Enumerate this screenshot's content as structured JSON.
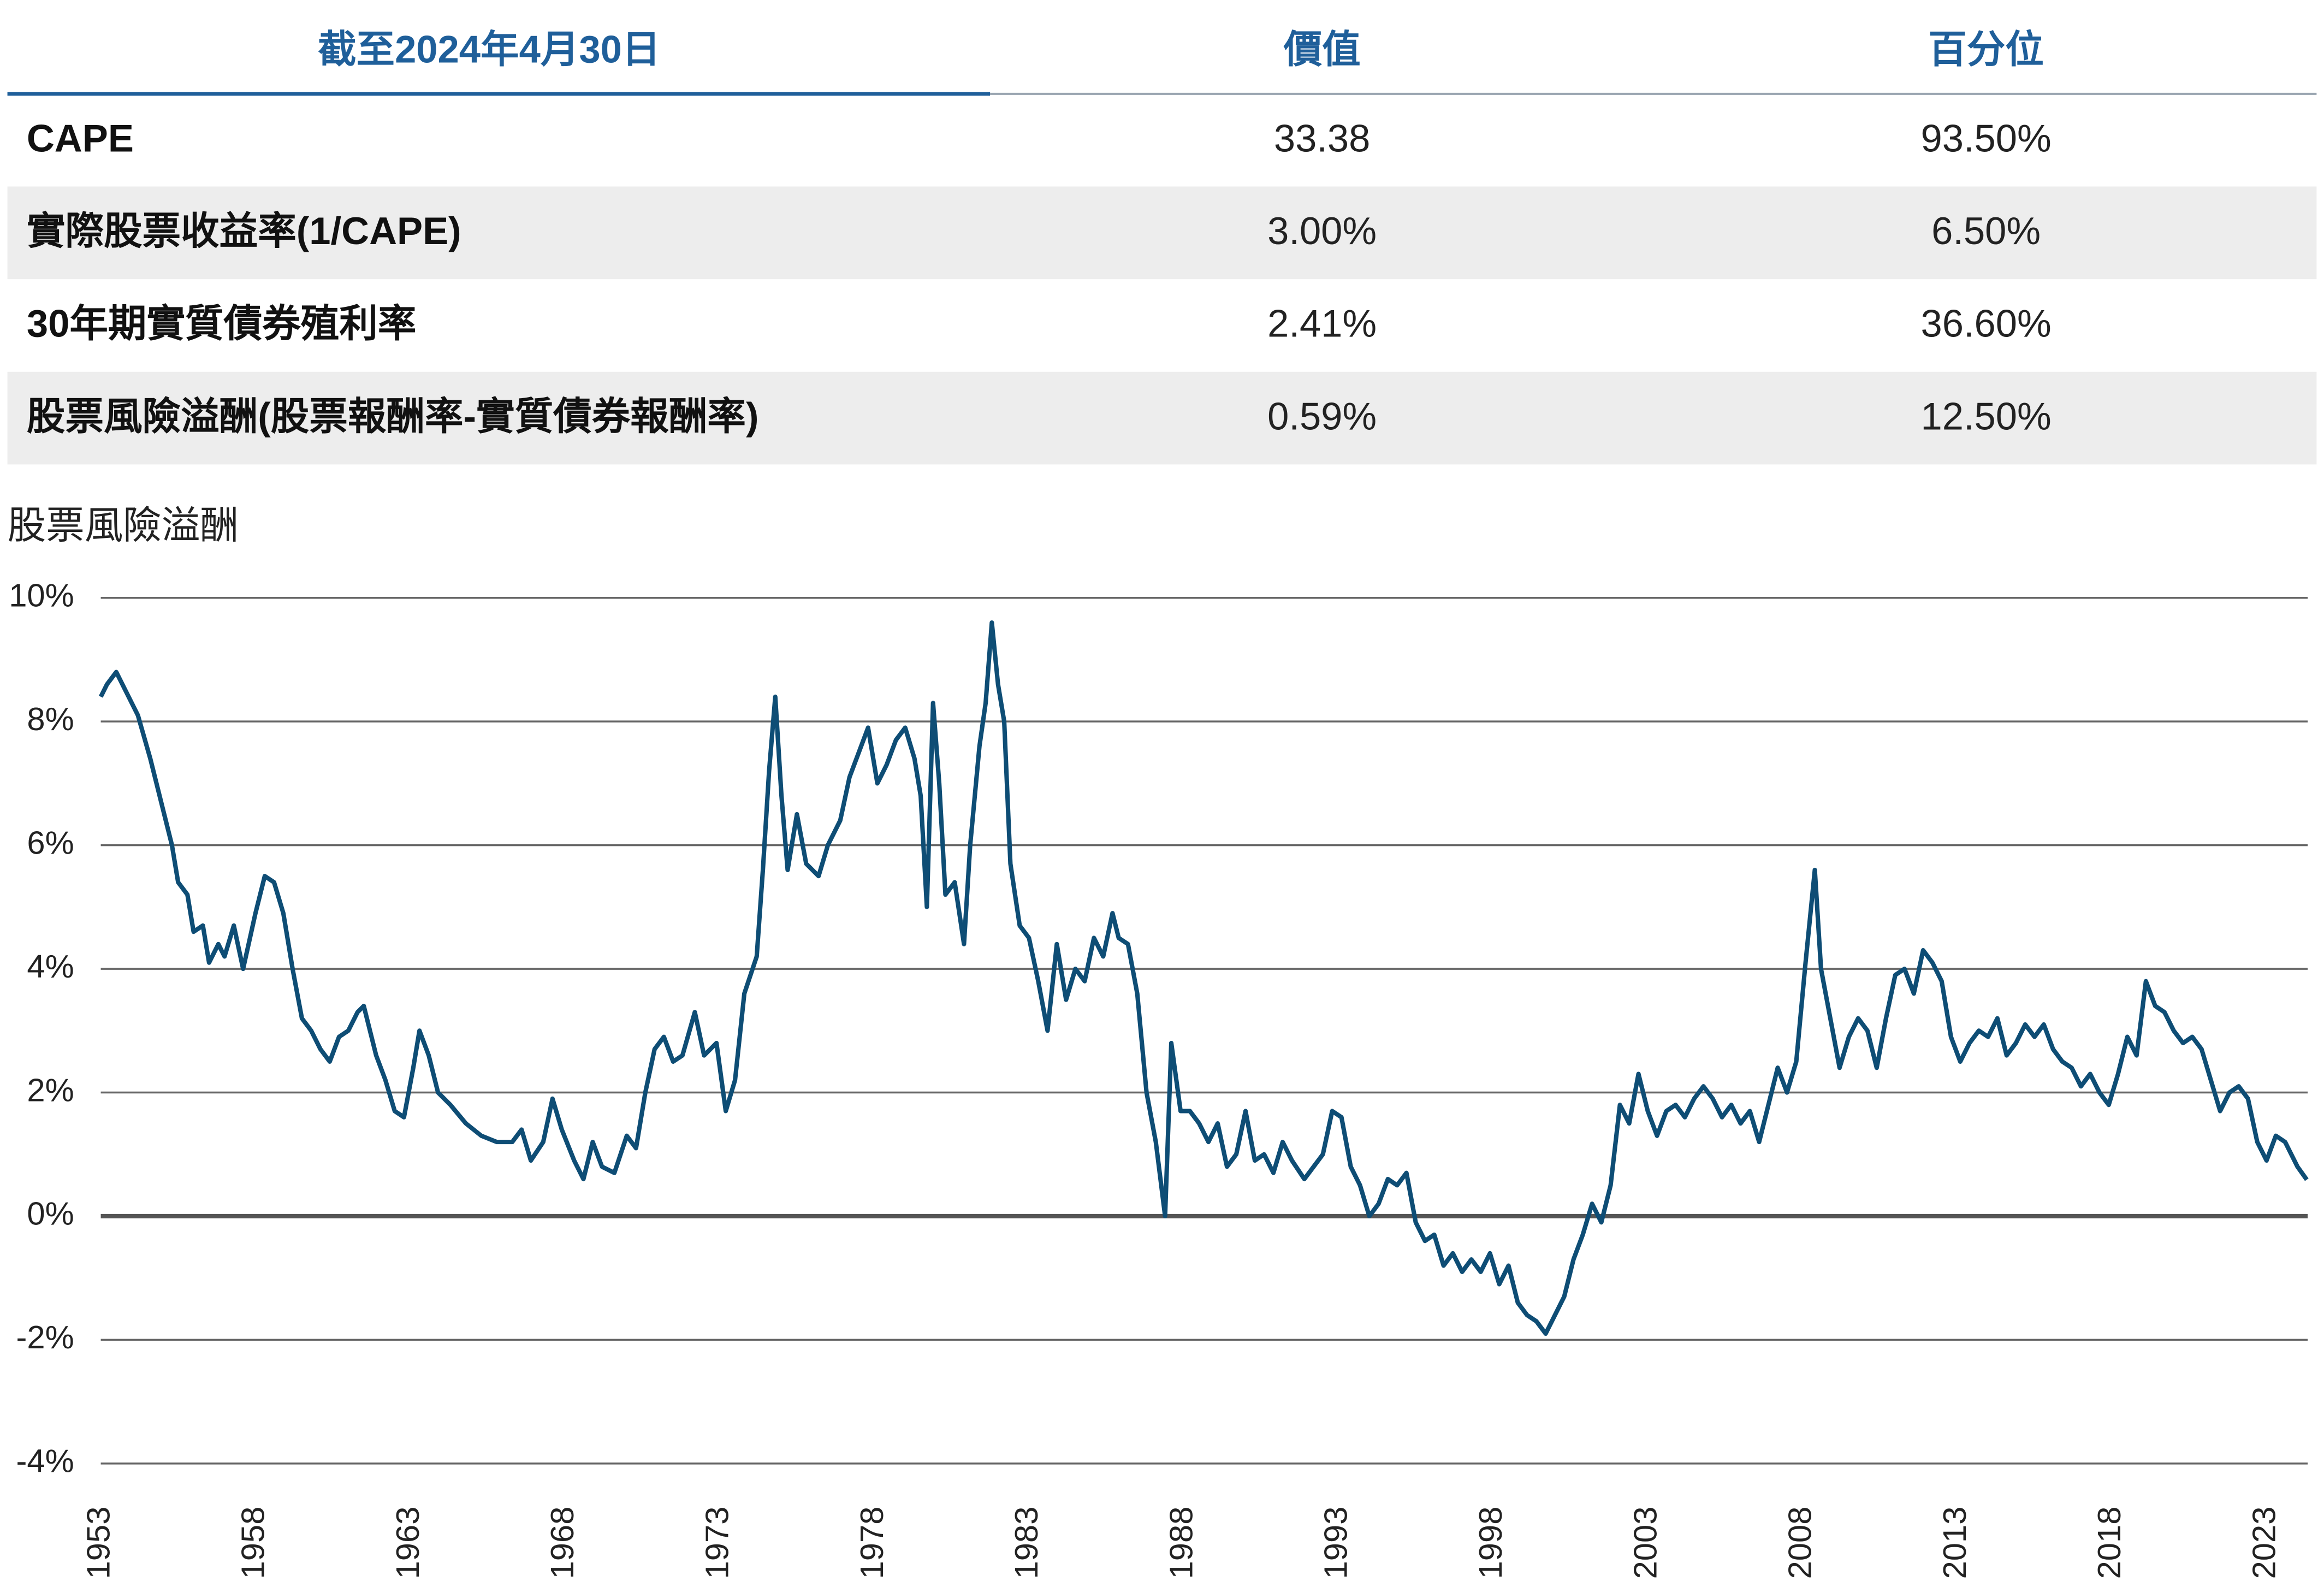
{
  "table": {
    "header": [
      "截至2024年4月30日",
      "價值",
      "百分位"
    ],
    "rows": [
      [
        "CAPE",
        "33.38",
        "93.50%"
      ],
      [
        "實際股票收益率(1/CAPE)",
        "3.00%",
        "6.50%"
      ],
      [
        "30年期實質債券殖利率",
        "2.41%",
        "36.60%"
      ],
      [
        "股票風險溢酬(股票報酬率-實質債券報酬率)",
        "0.59%",
        "12.50%"
      ]
    ],
    "percentile_colors": [
      "#c8102e",
      "#c8102e",
      "#ec7d92",
      "#e1506c"
    ]
  },
  "chart_data": {
    "type": "line",
    "title": "股票風險溢酬",
    "color": "#0e4d75",
    "xlim": [
      1953,
      2024.33
    ],
    "xticks": [
      1953,
      1958,
      1963,
      1968,
      1973,
      1978,
      1983,
      1988,
      1993,
      1998,
      2003,
      2008,
      2013,
      2018,
      2023
    ],
    "ylim": [
      -4,
      10
    ],
    "yticks": [
      {
        "value": -4,
        "label": "-4%"
      },
      {
        "value": -2,
        "label": "-2%"
      },
      {
        "value": 0,
        "label": "0%"
      },
      {
        "value": 2,
        "label": "2%"
      },
      {
        "value": 4,
        "label": "4%"
      },
      {
        "value": 6,
        "label": "6%"
      },
      {
        "value": 8,
        "label": "8%"
      },
      {
        "value": 10,
        "label": "10%"
      }
    ],
    "grid": true,
    "x": [
      1953.0,
      1953.2,
      1953.5,
      1953.8,
      1954.2,
      1954.6,
      1955.0,
      1955.3,
      1955.5,
      1955.8,
      1956.0,
      1956.3,
      1956.5,
      1956.8,
      1957.0,
      1957.3,
      1957.6,
      1958.0,
      1958.3,
      1958.6,
      1958.9,
      1959.2,
      1959.5,
      1959.8,
      1960.1,
      1960.4,
      1960.7,
      1961.0,
      1961.3,
      1961.5,
      1961.9,
      1962.2,
      1962.5,
      1962.8,
      1963.1,
      1963.3,
      1963.6,
      1963.9,
      1964.3,
      1964.8,
      1965.3,
      1965.8,
      1966.3,
      1966.6,
      1966.9,
      1967.3,
      1967.6,
      1967.9,
      1968.3,
      1968.6,
      1968.9,
      1969.2,
      1969.6,
      1970.0,
      1970.3,
      1970.6,
      1970.9,
      1971.2,
      1971.5,
      1971.8,
      1972.2,
      1972.5,
      1972.9,
      1973.2,
      1973.5,
      1973.8,
      1974.2,
      1974.4,
      1974.6,
      1974.8,
      1975.0,
      1975.2,
      1975.5,
      1975.8,
      1976.2,
      1976.5,
      1976.9,
      1977.2,
      1977.5,
      1977.8,
      1978.1,
      1978.4,
      1978.7,
      1979.0,
      1979.3,
      1979.5,
      1979.7,
      1979.9,
      1980.1,
      1980.3,
      1980.6,
      1980.9,
      1981.1,
      1981.4,
      1981.6,
      1981.8,
      1982.0,
      1982.2,
      1982.4,
      1982.7,
      1983.0,
      1983.3,
      1983.6,
      1983.9,
      1984.2,
      1984.5,
      1984.8,
      1985.1,
      1985.4,
      1985.7,
      1985.9,
      1986.2,
      1986.5,
      1986.8,
      1987.1,
      1987.4,
      1987.6,
      1987.9,
      1988.2,
      1988.5,
      1988.8,
      1989.1,
      1989.4,
      1989.7,
      1990.0,
      1990.3,
      1990.6,
      1990.9,
      1991.2,
      1991.5,
      1991.9,
      1992.2,
      1992.5,
      1992.8,
      1993.1,
      1993.4,
      1993.7,
      1994.0,
      1994.3,
      1994.6,
      1994.9,
      1995.2,
      1995.5,
      1995.8,
      1996.1,
      1996.4,
      1996.7,
      1997.0,
      1997.3,
      1997.6,
      1997.9,
      1998.2,
      1998.5,
      1998.8,
      1999.1,
      1999.4,
      1999.7,
      2000.0,
      2000.3,
      2000.6,
      2000.9,
      2001.2,
      2001.5,
      2001.8,
      2002.1,
      2002.4,
      2002.7,
      2003.0,
      2003.3,
      2003.6,
      2003.9,
      2004.2,
      2004.5,
      2004.8,
      2005.1,
      2005.4,
      2005.7,
      2006.0,
      2006.3,
      2006.6,
      2006.9,
      2007.2,
      2007.5,
      2007.8,
      2008.1,
      2008.4,
      2008.6,
      2008.9,
      2009.2,
      2009.5,
      2009.8,
      2010.1,
      2010.4,
      2010.7,
      2011.0,
      2011.3,
      2011.6,
      2011.9,
      2012.2,
      2012.5,
      2012.8,
      2013.1,
      2013.4,
      2013.7,
      2014.0,
      2014.3,
      2014.6,
      2014.9,
      2015.2,
      2015.5,
      2015.8,
      2016.1,
      2016.4,
      2016.7,
      2017.0,
      2017.3,
      2017.6,
      2017.9,
      2018.2,
      2018.5,
      2018.8,
      2019.1,
      2019.4,
      2019.7,
      2020.0,
      2020.3,
      2020.6,
      2020.9,
      2021.2,
      2021.5,
      2021.8,
      2022.1,
      2022.4,
      2022.7,
      2023.0,
      2023.3,
      2023.6,
      2024.0,
      2024.3
    ],
    "values": [
      8.4,
      8.6,
      8.8,
      8.5,
      8.1,
      7.4,
      6.6,
      6.0,
      5.4,
      5.2,
      4.6,
      4.7,
      4.1,
      4.4,
      4.2,
      4.7,
      4.0,
      4.9,
      5.5,
      5.4,
      4.9,
      4.0,
      3.2,
      3.0,
      2.7,
      2.5,
      2.9,
      3.0,
      3.3,
      3.4,
      2.6,
      2.2,
      1.7,
      1.6,
      2.4,
      3.0,
      2.6,
      2.0,
      1.8,
      1.5,
      1.3,
      1.2,
      1.2,
      1.4,
      0.9,
      1.2,
      1.9,
      1.4,
      0.9,
      0.6,
      1.2,
      0.8,
      0.7,
      1.3,
      1.1,
      2.0,
      2.7,
      2.9,
      2.5,
      2.6,
      3.3,
      2.6,
      2.8,
      1.7,
      2.2,
      3.6,
      4.2,
      5.6,
      7.2,
      8.4,
      6.8,
      5.6,
      6.5,
      5.7,
      5.5,
      6.0,
      6.4,
      7.1,
      7.5,
      7.9,
      7.0,
      7.3,
      7.7,
      7.9,
      7.4,
      6.8,
      5.0,
      8.3,
      7.0,
      5.2,
      5.4,
      4.4,
      6.0,
      7.6,
      8.3,
      9.6,
      8.6,
      8.0,
      5.7,
      4.7,
      4.5,
      3.8,
      3.0,
      4.4,
      3.5,
      4.0,
      3.8,
      4.5,
      4.2,
      4.9,
      4.5,
      4.4,
      3.6,
      2.0,
      1.2,
      0.0,
      2.8,
      1.7,
      1.7,
      1.5,
      1.2,
      1.5,
      0.8,
      1.0,
      1.7,
      0.9,
      1.0,
      0.7,
      1.2,
      0.9,
      0.6,
      0.8,
      1.0,
      1.7,
      1.6,
      0.8,
      0.5,
      0.0,
      0.2,
      0.6,
      0.5,
      0.7,
      -0.1,
      -0.4,
      -0.3,
      -0.8,
      -0.6,
      -0.9,
      -0.7,
      -0.9,
      -0.6,
      -1.1,
      -0.8,
      -1.4,
      -1.6,
      -1.7,
      -1.9,
      -1.6,
      -1.3,
      -0.7,
      -0.3,
      0.2,
      -0.1,
      0.5,
      1.8,
      1.5,
      2.3,
      1.7,
      1.3,
      1.7,
      1.8,
      1.6,
      1.9,
      2.1,
      1.9,
      1.6,
      1.8,
      1.5,
      1.7,
      1.2,
      1.8,
      2.4,
      2.0,
      2.5,
      4.1,
      5.6,
      4.0,
      3.2,
      2.4,
      2.9,
      3.2,
      3.0,
      2.4,
      3.2,
      3.9,
      4.0,
      3.6,
      4.3,
      4.1,
      3.8,
      2.9,
      2.5,
      2.8,
      3.0,
      2.9,
      3.2,
      2.6,
      2.8,
      3.1,
      2.9,
      3.1,
      2.7,
      2.5,
      2.4,
      2.1,
      2.3,
      2.0,
      1.8,
      2.3,
      2.9,
      2.6,
      3.8,
      3.4,
      3.3,
      3.0,
      2.8,
      2.9,
      2.7,
      2.2,
      1.7,
      2.0,
      2.1,
      1.9,
      1.2,
      0.9,
      1.3,
      1.2,
      0.8,
      0.59
    ]
  }
}
